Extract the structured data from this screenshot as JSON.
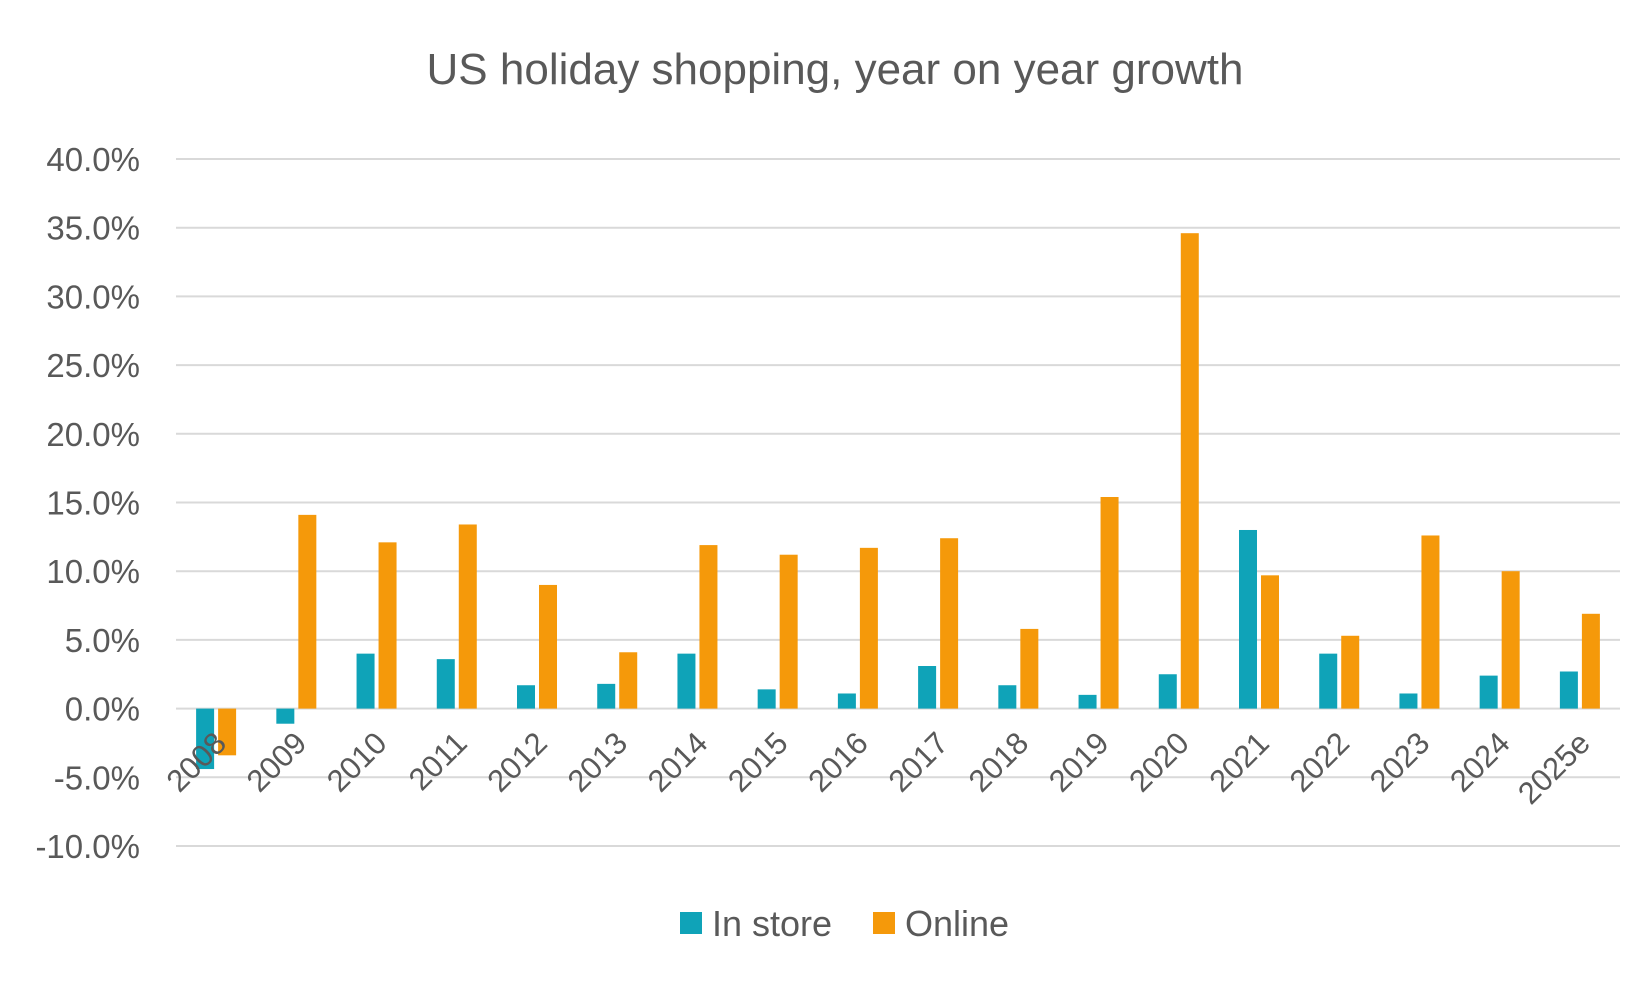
{
  "chart_data": {
    "type": "bar",
    "title": "US holiday shopping, year on year growth",
    "xlabel": "",
    "ylabel": "",
    "ylim": [
      -10,
      40
    ],
    "y_ticks": [
      "40.0%",
      "35.0%",
      "30.0%",
      "25.0%",
      "20.0%",
      "15.0%",
      "10.0%",
      "5.0%",
      "0.0%",
      "-5.0%",
      "-10.0%"
    ],
    "y_tick_values": [
      40,
      35,
      30,
      25,
      20,
      15,
      10,
      5,
      0,
      -5,
      -10
    ],
    "categories": [
      "2008",
      "2009",
      "2010",
      "2011",
      "2012",
      "2013",
      "2014",
      "2015",
      "2016",
      "2017",
      "2018",
      "2019",
      "2020",
      "2021",
      "2022",
      "2023",
      "2024",
      "2025e"
    ],
    "series": [
      {
        "name": "In store",
        "color": "#0fa3b8",
        "values": [
          -4.4,
          -1.1,
          4.0,
          3.6,
          1.7,
          1.8,
          4.0,
          1.4,
          1.1,
          3.1,
          1.7,
          1.0,
          2.5,
          13.0,
          4.0,
          1.1,
          2.4,
          2.7
        ]
      },
      {
        "name": "Online",
        "color": "#f5990a",
        "values": [
          -3.4,
          14.1,
          12.1,
          13.4,
          9.0,
          4.1,
          11.9,
          11.2,
          11.7,
          12.4,
          5.8,
          15.4,
          34.6,
          9.7,
          5.3,
          12.6,
          10.0,
          6.9
        ]
      }
    ],
    "grid": true,
    "legend_position": "bottom"
  }
}
